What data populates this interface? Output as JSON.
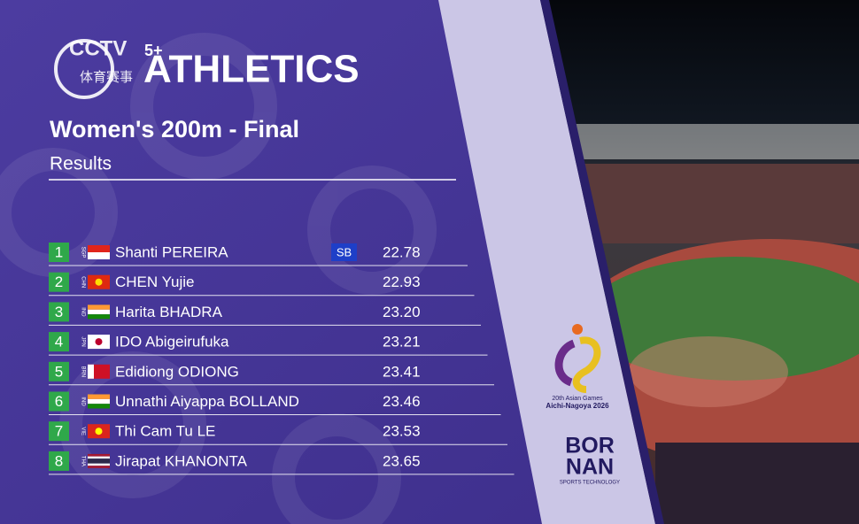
{
  "logo": {
    "channel": "CCTV",
    "plus": "5+",
    "sub": "体育赛事"
  },
  "header": {
    "sport": "ATHLETICS",
    "title": "Women's 200m - Final",
    "subtitle": "Results"
  },
  "table": {
    "rows": [
      {
        "rank": "1",
        "code": "SGP",
        "name": "Shanti PEREIRA",
        "badge": "SB",
        "time": "22.78"
      },
      {
        "rank": "2",
        "code": "CHN",
        "name": "CHEN Yujie",
        "time": "22.93"
      },
      {
        "rank": "3",
        "code": "IND",
        "name": "Harita BHADRA",
        "time": "23.20"
      },
      {
        "rank": "4",
        "code": "JPN",
        "name": "IDO Abigeirufuka",
        "time": "23.21"
      },
      {
        "rank": "5",
        "code": "BRN",
        "name": "Edidiong ODIONG",
        "time": "23.41"
      },
      {
        "rank": "6",
        "code": "IND",
        "name": "Unnathi Aiyappa BOLLAND",
        "time": "23.46"
      },
      {
        "rank": "7",
        "code": "VIE",
        "name": "Thi Cam Tu LE",
        "time": "23.53"
      },
      {
        "rank": "8",
        "code": "THA",
        "name": "Jirapat KHANONTA",
        "time": "23.65"
      }
    ]
  },
  "sponsors": {
    "games": "20th Asian Games",
    "host": "Aichi-Nagoya 2026",
    "brand_top": "BOR",
    "brand_bottom": "NAN",
    "brand_tag": "SPORTS TECHNOLOGY"
  }
}
